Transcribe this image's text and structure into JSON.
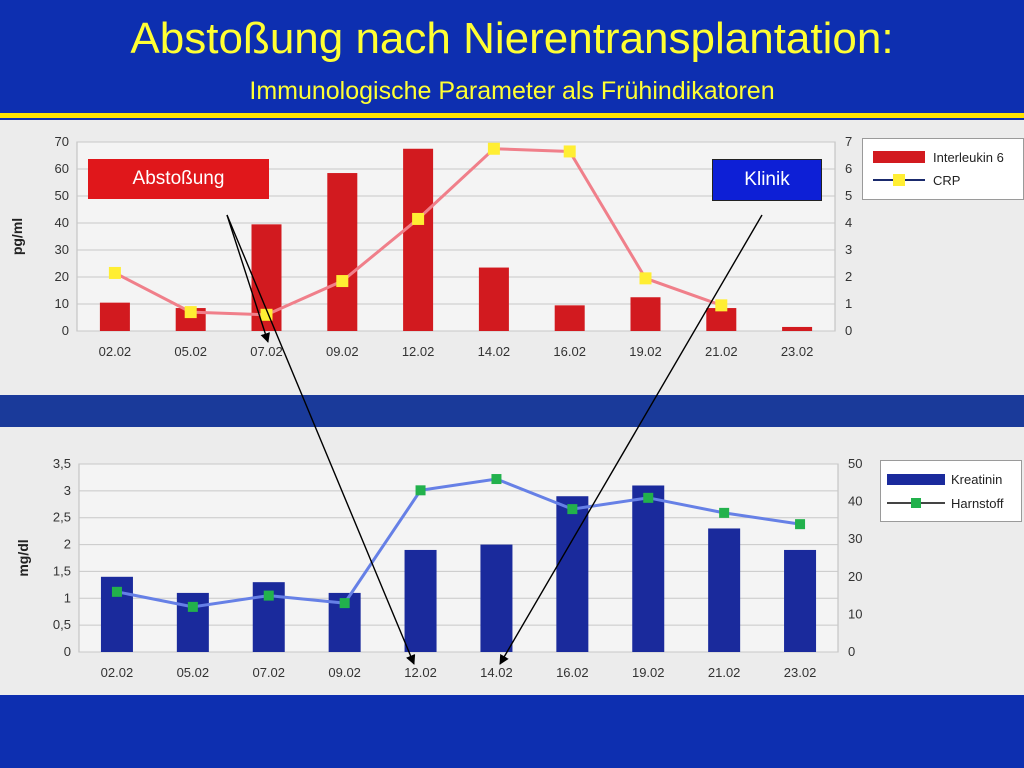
{
  "slide": {
    "title": "Abstoßung nach Nierentransplantation:",
    "subtitle": "Immunologische Parameter als Frühindikatoren"
  },
  "callouts": {
    "rejection": "Abstoßung",
    "clinic": "Klinik"
  },
  "colors": {
    "background": "#0d2fb0",
    "title_text": "#ffff33",
    "il6_bar": "#d21a1f",
    "crp_line": "#f07f8a",
    "crp_marker": "#ffee33",
    "kreatinin_bar": "#1a2a9c",
    "harnstoff_line": "#6680e6",
    "harnstoff_marker": "#22b14c"
  },
  "chart_data": [
    {
      "type": "bar",
      "categories": [
        "02.02",
        "05.02",
        "07.02",
        "09.02",
        "12.02",
        "14.02",
        "16.02",
        "19.02",
        "21.02",
        "23.02"
      ],
      "ylabel": "pg/ml",
      "ylim": [
        0,
        70
      ],
      "yticks": [
        "0",
        "10",
        "20",
        "30",
        "40",
        "50",
        "60",
        "70"
      ],
      "y2lim": [
        0,
        7
      ],
      "y2ticks": [
        "0",
        "1",
        "2",
        "3",
        "4",
        "5",
        "6",
        "7"
      ],
      "grid": true,
      "legend_position": "right",
      "series": [
        {
          "name": "Interleukin 6",
          "type": "bar",
          "axis": "left",
          "values": [
            10.5,
            8.5,
            39.5,
            58.5,
            67.5,
            23.5,
            9.5,
            12.5,
            8.5,
            1.5
          ]
        },
        {
          "name": "CRP",
          "type": "line",
          "axis": "right",
          "values": [
            2.15,
            0.7,
            0.6,
            1.85,
            4.15,
            6.75,
            6.65,
            1.95,
            0.95,
            null
          ]
        }
      ]
    },
    {
      "type": "bar",
      "categories": [
        "02.02",
        "05.02",
        "07.02",
        "09.02",
        "12.02",
        "14.02",
        "16.02",
        "19.02",
        "21.02",
        "23.02"
      ],
      "ylabel": "mg/dl",
      "ylim": [
        0,
        3.5
      ],
      "yticks": [
        "0",
        "0,5",
        "1",
        "1,5",
        "2",
        "2,5",
        "3",
        "3,5"
      ],
      "y2lim": [
        0,
        50
      ],
      "y2ticks": [
        "0",
        "10",
        "20",
        "30",
        "40",
        "50"
      ],
      "grid": true,
      "legend_position": "right",
      "series": [
        {
          "name": "Kreatinin",
          "type": "bar",
          "axis": "left",
          "values": [
            1.4,
            1.1,
            1.3,
            1.1,
            1.9,
            2.0,
            2.9,
            3.1,
            2.3,
            1.9
          ]
        },
        {
          "name": "Harnstoff",
          "type": "line",
          "axis": "right",
          "values": [
            16,
            12,
            15,
            13,
            43,
            46,
            38,
            41,
            37,
            34
          ]
        }
      ]
    }
  ]
}
